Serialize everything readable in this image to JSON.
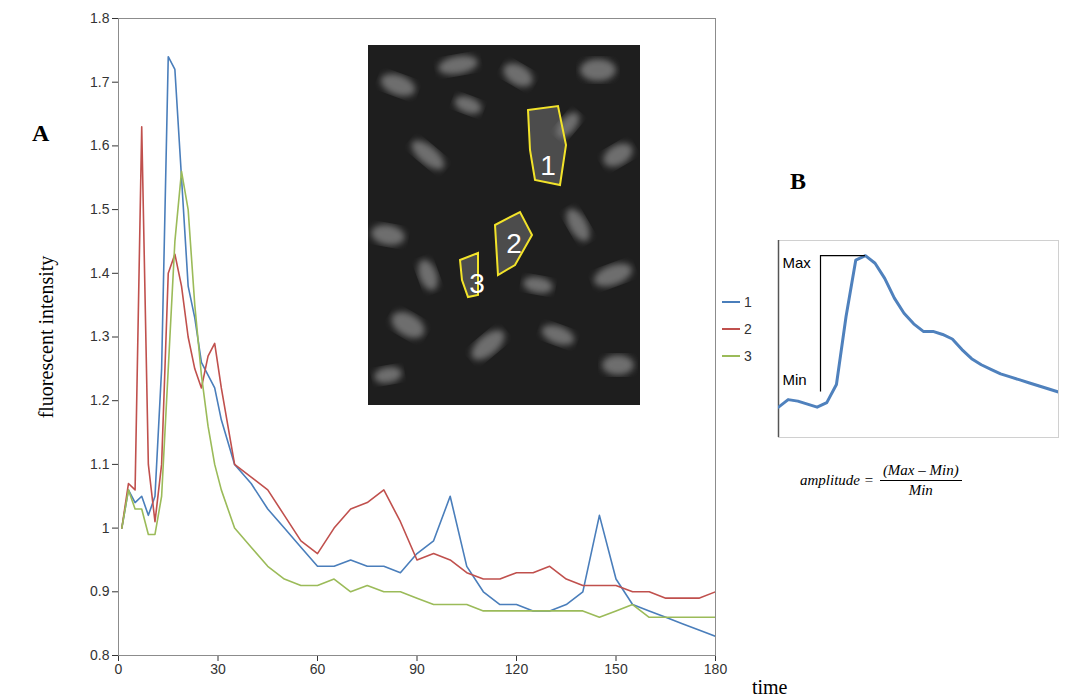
{
  "chart_data": [
    {
      "type": "line",
      "panel_label": "A",
      "x_label": "time",
      "y_label": "fluorescent intensity",
      "x": [
        1,
        3,
        5,
        7,
        9,
        11,
        13,
        15,
        17,
        19,
        21,
        23,
        25,
        27,
        29,
        31,
        35,
        40,
        45,
        50,
        55,
        60,
        65,
        70,
        75,
        80,
        85,
        90,
        95,
        100,
        105,
        110,
        115,
        120,
        125,
        130,
        135,
        140,
        145,
        150,
        155,
        160,
        165,
        170,
        175,
        180
      ],
      "series": [
        {
          "name": "1",
          "color": "#4a7ebb",
          "values": [
            1.0,
            1.06,
            1.04,
            1.05,
            1.02,
            1.05,
            1.25,
            1.74,
            1.72,
            1.55,
            1.38,
            1.33,
            1.26,
            1.24,
            1.22,
            1.17,
            1.1,
            1.07,
            1.03,
            1.0,
            0.97,
            0.94,
            0.94,
            0.95,
            0.94,
            0.94,
            0.93,
            0.96,
            0.98,
            1.05,
            0.94,
            0.9,
            0.88,
            0.88,
            0.87,
            0.87,
            0.88,
            0.9,
            1.02,
            0.92,
            0.88,
            0.87,
            0.86,
            0.85,
            0.84,
            0.83
          ]
        },
        {
          "name": "2",
          "color": "#c0504d",
          "values": [
            1.0,
            1.07,
            1.06,
            1.63,
            1.1,
            1.01,
            1.1,
            1.4,
            1.43,
            1.38,
            1.3,
            1.25,
            1.22,
            1.27,
            1.29,
            1.22,
            1.1,
            1.08,
            1.06,
            1.02,
            0.98,
            0.96,
            1.0,
            1.03,
            1.04,
            1.06,
            1.01,
            0.95,
            0.96,
            0.95,
            0.93,
            0.92,
            0.92,
            0.93,
            0.93,
            0.94,
            0.92,
            0.91,
            0.91,
            0.91,
            0.9,
            0.9,
            0.89,
            0.89,
            0.89,
            0.9
          ]
        },
        {
          "name": "3",
          "color": "#9bbb59",
          "values": [
            1.0,
            1.06,
            1.03,
            1.03,
            0.99,
            0.99,
            1.05,
            1.25,
            1.45,
            1.56,
            1.5,
            1.35,
            1.24,
            1.16,
            1.1,
            1.06,
            1.0,
            0.97,
            0.94,
            0.92,
            0.91,
            0.91,
            0.92,
            0.9,
            0.91,
            0.9,
            0.9,
            0.89,
            0.88,
            0.88,
            0.88,
            0.87,
            0.87,
            0.87,
            0.87,
            0.87,
            0.87,
            0.87,
            0.86,
            0.87,
            0.88,
            0.86,
            0.86,
            0.86,
            0.86,
            0.86
          ]
        }
      ],
      "xlim": [
        0,
        180
      ],
      "xticks": [
        0,
        30,
        60,
        90,
        120,
        150,
        180
      ],
      "ylim": [
        0.8,
        1.8
      ],
      "yticks": [
        0.8,
        0.9,
        1,
        1.1,
        1.2,
        1.3,
        1.4,
        1.5,
        1.6,
        1.7,
        1.8
      ],
      "grid": false,
      "legend": "right",
      "inset": {
        "labels": [
          "1",
          "2",
          "3"
        ]
      }
    },
    {
      "type": "line",
      "panel_label": "B",
      "tick_labels": false,
      "x": [
        0,
        1,
        2,
        3,
        4,
        5,
        6,
        7,
        8,
        9,
        10,
        11,
        12,
        13,
        14,
        15,
        16,
        17,
        18,
        19,
        20,
        21,
        22,
        23,
        24,
        25,
        26,
        27,
        28,
        29
      ],
      "series": [
        {
          "name": "",
          "color": "#4f81bd",
          "values": [
            1.0,
            1.05,
            1.04,
            1.02,
            1.0,
            1.03,
            1.15,
            1.6,
            1.97,
            2.0,
            1.95,
            1.85,
            1.72,
            1.62,
            1.55,
            1.5,
            1.5,
            1.48,
            1.45,
            1.38,
            1.32,
            1.28,
            1.25,
            1.22,
            1.2,
            1.18,
            1.16,
            1.14,
            1.12,
            1.1
          ]
        }
      ],
      "xlim": [
        0,
        29
      ],
      "ylim": [
        0.8,
        2.1
      ],
      "annotations": [
        {
          "text": "Max",
          "y": 2.0
        },
        {
          "text": "Min",
          "y": 1.1
        }
      ],
      "formula": {
        "lhs": "amplitude =",
        "numerator": "(Max – Min)",
        "denominator": "Min"
      }
    }
  ]
}
